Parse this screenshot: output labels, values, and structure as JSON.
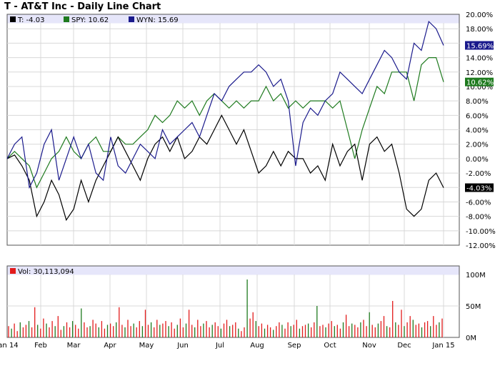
{
  "chart_title": "T - AT&T Inc - Daily Line Chart",
  "legend": [
    {
      "text": "T: -4.03",
      "color": "#000000"
    },
    {
      "text": "SPY: 10.62",
      "color": "#1e7a1e"
    },
    {
      "text": "WYN: 15.69",
      "color": "#1a1a8c"
    }
  ],
  "volume_label": "Vol: 30,113,094",
  "volume_color": "#e21b1b",
  "chart_data": {
    "type": "line",
    "x_ticks": [
      "Jan 14",
      "Feb",
      "Mar",
      "Apr",
      "May",
      "Jun",
      "Jul",
      "Aug",
      "Sep",
      "Oct",
      "Nov",
      "Dec",
      "Jan 15"
    ],
    "ylim": [
      -12,
      20
    ],
    "y_ticks": [
      "20.00%",
      "18.00%",
      "16.00%",
      "14.00%",
      "12.00%",
      "10.00%",
      "8.00%",
      "6.00%",
      "4.00%",
      "2.00%",
      "0.00%",
      "-2.00%",
      "-4.00%",
      "-6.00%",
      "-8.00%",
      "-10.00%",
      "-12.00%"
    ],
    "grid": true,
    "series": [
      {
        "name": "T",
        "color": "#000000",
        "last_label": "-4.03%",
        "values": [
          0,
          0.5,
          -1,
          -3,
          -8,
          -6,
          -3,
          -5,
          -8.5,
          -7,
          -3,
          -6,
          -3,
          -1,
          1,
          3,
          1,
          -1,
          -3,
          0,
          2,
          3,
          1,
          3,
          0,
          1,
          3,
          2,
          4,
          6,
          4,
          2,
          4,
          1,
          -2,
          -1,
          1,
          -1,
          1,
          0,
          0,
          -2,
          -1,
          -3,
          2,
          -1,
          1,
          2,
          -3,
          2,
          3,
          1,
          2,
          -2,
          -7,
          -8,
          -7,
          -3,
          -2,
          -4.03
        ]
      },
      {
        "name": "SPY",
        "color": "#1e7a1e",
        "last_label": "10.62%",
        "values": [
          0,
          1,
          0,
          -1,
          -4,
          -2,
          0,
          1,
          3,
          1,
          0,
          2,
          3,
          1,
          1,
          3,
          2,
          2,
          3,
          4,
          6,
          5,
          6,
          8,
          7,
          8,
          6,
          8,
          9,
          8,
          7,
          8,
          7,
          8,
          8,
          10,
          8,
          9,
          7,
          8,
          7,
          8,
          8,
          8,
          7,
          8,
          4,
          0,
          4,
          7,
          10,
          9,
          12,
          12,
          12,
          8,
          13,
          14,
          14,
          10.62
        ]
      },
      {
        "name": "WYN",
        "color": "#1a1a8c",
        "last_label": "15.69%",
        "values": [
          0,
          2,
          3,
          -4,
          -2,
          2,
          4,
          -3,
          0,
          3,
          0,
          2,
          -2,
          -3,
          3,
          -1,
          -2,
          0,
          2,
          1,
          0,
          4,
          2,
          3,
          4,
          5,
          3,
          6,
          9,
          8,
          10,
          11,
          12,
          12,
          13,
          12,
          10,
          11,
          8,
          -1,
          5,
          7,
          6,
          8,
          9,
          12,
          11,
          10,
          9,
          11,
          13,
          15,
          14,
          12,
          11,
          16,
          15,
          19,
          18,
          15.69
        ]
      }
    ],
    "volume": {
      "ylim": [
        0,
        100
      ],
      "y_ticks": [
        "100M",
        "50M",
        "0M"
      ],
      "values": [
        18,
        14,
        22,
        10,
        24,
        16,
        20,
        26,
        16,
        48,
        20,
        14,
        30,
        22,
        16,
        26,
        18,
        34,
        12,
        18,
        24,
        16,
        26,
        20,
        14,
        46,
        24,
        16,
        18,
        28,
        22,
        16,
        26,
        14,
        20,
        22,
        18,
        24,
        48,
        20,
        16,
        28,
        18,
        22,
        16,
        26,
        18,
        44,
        20,
        24,
        16,
        28,
        20,
        22,
        26,
        18,
        24,
        14,
        20,
        30,
        16,
        22,
        44,
        20,
        16,
        28,
        18,
        22,
        26,
        16,
        20,
        24,
        18,
        14,
        22,
        28,
        18,
        20,
        24,
        14,
        10,
        16,
        92,
        30,
        40,
        26,
        18,
        22,
        14,
        20,
        16,
        12,
        18,
        24,
        20,
        14,
        24,
        18,
        20,
        28,
        14,
        18,
        20,
        22,
        16,
        24,
        50,
        18,
        20,
        16,
        22,
        26,
        18,
        20,
        14,
        24,
        36,
        18,
        22,
        20,
        16,
        24,
        28,
        18,
        40,
        20,
        16,
        22,
        26,
        34,
        18,
        16,
        58,
        24,
        20,
        44,
        18,
        24,
        34,
        28,
        20,
        22,
        16,
        24,
        26,
        18,
        34,
        20,
        24,
        30
      ]
    }
  }
}
